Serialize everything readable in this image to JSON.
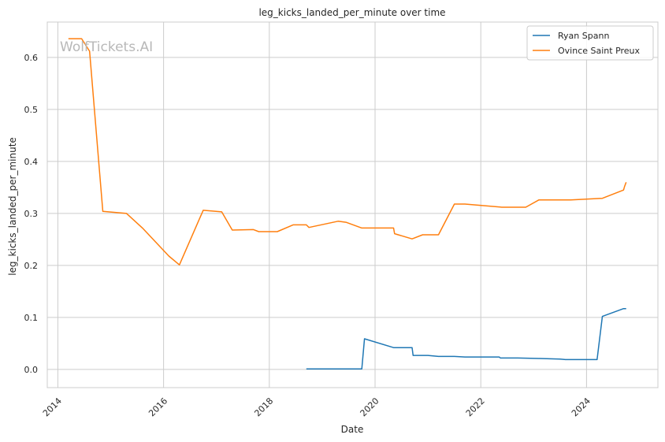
{
  "chart_data": {
    "type": "line",
    "title": "leg_kicks_landed_per_minute over time",
    "xlabel": "Date",
    "ylabel": "leg_kicks_landed_per_minute",
    "watermark": "WolfTickets.AI",
    "xlim": [
      2013.8,
      2025.35
    ],
    "ylim": [
      -0.035,
      0.668
    ],
    "x_ticks": [
      2014,
      2016,
      2018,
      2020,
      2022,
      2024
    ],
    "x_tick_labels": [
      "2014",
      "2016",
      "2018",
      "2020",
      "2022",
      "2024"
    ],
    "y_ticks": [
      0.0,
      0.1,
      0.2,
      0.3,
      0.4,
      0.5,
      0.6
    ],
    "y_tick_labels": [
      "0.0",
      "0.1",
      "0.2",
      "0.3",
      "0.4",
      "0.5",
      "0.6"
    ],
    "grid": true,
    "legend_position": "top-right",
    "series": [
      {
        "name": "Ryan Spann",
        "color": "#1f77b4",
        "x": [
          2018.7,
          2019.75,
          2019.8,
          2020.35,
          2020.7,
          2020.72,
          2021.0,
          2021.2,
          2021.5,
          2021.7,
          2022.0,
          2022.35,
          2022.37,
          2022.7,
          2023.1,
          2023.12,
          2023.5,
          2023.6,
          2024.0,
          2024.2,
          2024.3,
          2024.7,
          2024.75
        ],
        "y": [
          0.001,
          0.001,
          0.059,
          0.042,
          0.042,
          0.027,
          0.027,
          0.025,
          0.025,
          0.024,
          0.024,
          0.024,
          0.022,
          0.022,
          0.021,
          0.021,
          0.02,
          0.019,
          0.019,
          0.019,
          0.102,
          0.117,
          0.117
        ]
      },
      {
        "name": "Ovince Saint Preux",
        "color": "#ff7f0e",
        "x": [
          2014.2,
          2014.45,
          2014.6,
          2014.85,
          2015.3,
          2015.6,
          2016.1,
          2016.3,
          2016.75,
          2017.1,
          2017.3,
          2017.7,
          2017.8,
          2018.15,
          2018.45,
          2018.7,
          2018.75,
          2019.3,
          2019.45,
          2019.75,
          2020.35,
          2020.37,
          2020.7,
          2020.9,
          2021.2,
          2021.5,
          2021.7,
          2022.4,
          2022.85,
          2023.1,
          2023.7,
          2024.1,
          2024.3,
          2024.7,
          2024.72,
          2024.75
        ],
        "y": [
          0.636,
          0.636,
          0.612,
          0.304,
          0.3,
          0.272,
          0.218,
          0.201,
          0.306,
          0.303,
          0.268,
          0.269,
          0.265,
          0.265,
          0.278,
          0.278,
          0.273,
          0.285,
          0.283,
          0.272,
          0.272,
          0.261,
          0.251,
          0.259,
          0.259,
          0.318,
          0.318,
          0.312,
          0.312,
          0.326,
          0.326,
          0.328,
          0.329,
          0.345,
          0.352,
          0.36
        ]
      }
    ]
  }
}
